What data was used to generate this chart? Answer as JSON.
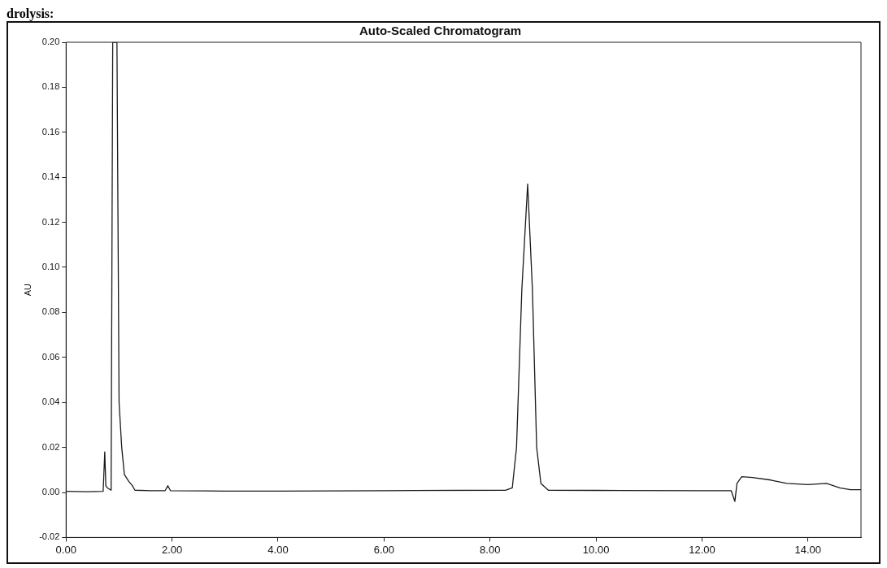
{
  "chart_data": {
    "type": "line",
    "title": "Auto-Scaled Chromatogram",
    "ylabel": "AU",
    "annotations": [
      "drolysis:"
    ],
    "x": [
      0,
      0.4,
      0.7,
      0.73,
      0.75,
      0.78,
      0.85,
      0.88,
      0.96,
      1.0,
      1.05,
      1.1,
      1.18,
      1.25,
      1.3,
      1.6,
      1.87,
      1.92,
      1.97,
      3.0,
      4.0,
      6.0,
      8.3,
      8.42,
      8.5,
      8.6,
      8.71,
      8.8,
      8.88,
      8.96,
      9.1,
      10.0,
      12.0,
      12.55,
      12.62,
      12.66,
      12.75,
      12.95,
      13.3,
      13.6,
      14.0,
      14.35,
      14.6,
      14.8,
      15.0
    ],
    "series": [
      {
        "color": "#1a1a1a",
        "values": [
          0.0005,
          0.0003,
          0.0005,
          0.018,
          0.003,
          0.002,
          0.001,
          0.2,
          0.2,
          0.04,
          0.02,
          0.008,
          0.005,
          0.003,
          0.001,
          0.0008,
          0.0008,
          0.003,
          0.0008,
          0.0006,
          0.0006,
          0.0008,
          0.001,
          0.002,
          0.02,
          0.09,
          0.137,
          0.09,
          0.02,
          0.004,
          0.001,
          0.0009,
          0.0008,
          0.0008,
          -0.004,
          0.004,
          0.007,
          0.0066,
          0.0055,
          0.004,
          0.0035,
          0.004,
          0.002,
          0.0012,
          0.0012
        ]
      }
    ],
    "xlim": [
      0,
      15
    ],
    "xticks": [
      {
        "value": 0,
        "label": "0.00"
      },
      {
        "value": 2,
        "label": "2.00"
      },
      {
        "value": 4,
        "label": "4.00"
      },
      {
        "value": 6,
        "label": "6.00"
      },
      {
        "value": 8,
        "label": "8.00"
      },
      {
        "value": 10,
        "label": "10.00"
      },
      {
        "value": 12,
        "label": "12.00"
      },
      {
        "value": 14,
        "label": "14.00"
      }
    ],
    "ylim": [
      -0.02,
      0.2
    ],
    "yticks": [
      {
        "value": -0.02,
        "label": "-0.02"
      },
      {
        "value": 0,
        "label": "0.00"
      },
      {
        "value": 0.02,
        "label": "0.02"
      },
      {
        "value": 0.04,
        "label": "0.04"
      },
      {
        "value": 0.06,
        "label": "0.06"
      },
      {
        "value": 0.08,
        "label": "0.08"
      },
      {
        "value": 0.1,
        "label": "0.10"
      },
      {
        "value": 0.12,
        "label": "0.12"
      },
      {
        "value": 0.14,
        "label": "0.14"
      },
      {
        "value": 0.16,
        "label": "0.16"
      },
      {
        "value": 0.18,
        "label": "0.18"
      },
      {
        "value": 0.2,
        "label": "0.20"
      }
    ],
    "grid": false,
    "legend": false,
    "marker": "none",
    "line_style": "solid"
  }
}
